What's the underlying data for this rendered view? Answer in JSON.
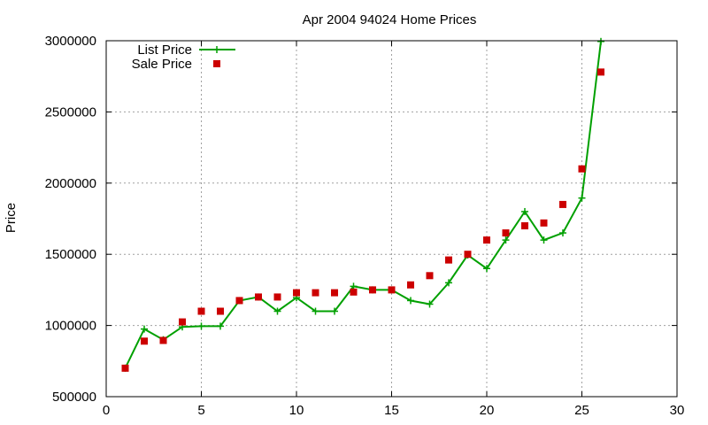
{
  "chart_data": {
    "type": "line",
    "title": "Apr 2004 94024 Home Prices",
    "xlabel": "",
    "ylabel": "Price",
    "xlim": [
      0,
      30
    ],
    "ylim": [
      500000,
      3000000
    ],
    "xticks": [
      0,
      5,
      10,
      15,
      20,
      25,
      30
    ],
    "yticks": [
      500000,
      1000000,
      1500000,
      2000000,
      2500000,
      3000000
    ],
    "grid": true,
    "legend": "top-left",
    "series": [
      {
        "name": "List Price",
        "style": "line+cross",
        "color": "#00a000",
        "x": [
          1,
          2,
          3,
          4,
          5,
          6,
          7,
          8,
          9,
          10,
          11,
          12,
          13,
          14,
          15,
          16,
          17,
          18,
          19,
          20,
          21,
          22,
          23,
          24,
          25,
          26
        ],
        "values": [
          700000,
          975000,
          900000,
          990000,
          995000,
          995000,
          1175000,
          1200000,
          1100000,
          1195000,
          1100000,
          1100000,
          1275000,
          1250000,
          1250000,
          1175000,
          1150000,
          1300000,
          1495000,
          1400000,
          1600000,
          1800000,
          1600000,
          1650000,
          1895000,
          2995000
        ]
      },
      {
        "name": "Sale Price",
        "style": "points",
        "color": "#cc0000",
        "x": [
          1,
          2,
          3,
          4,
          5,
          6,
          7,
          8,
          9,
          10,
          11,
          12,
          13,
          14,
          15,
          16,
          17,
          18,
          19,
          20,
          21,
          22,
          23,
          24,
          25,
          26
        ],
        "values": [
          700000,
          890000,
          895000,
          1025000,
          1100000,
          1100000,
          1175000,
          1200000,
          1200000,
          1230000,
          1230000,
          1230000,
          1235000,
          1250000,
          1250000,
          1285000,
          1350000,
          1460000,
          1500000,
          1600000,
          1650000,
          1700000,
          1720000,
          1850000,
          2100000,
          2780000
        ]
      }
    ]
  }
}
